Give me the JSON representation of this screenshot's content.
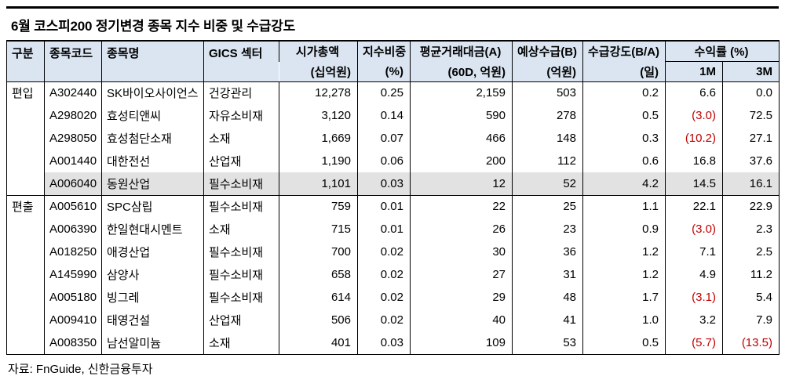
{
  "title": "6월 코스피200 정기변경 종목 지수 비중 및 수급강도",
  "source": "자료: FnGuide, 신한금융투자",
  "colors": {
    "header_bg": "#dbe5f1",
    "highlight_bg": "#e2e2e2",
    "negative": "#c00000"
  },
  "table": {
    "headers": {
      "group": "구분",
      "code": "종목코드",
      "name": "종목명",
      "sector": "GICS 섹터",
      "mcap": "시가총액",
      "mcap_unit": "(십억원)",
      "weight": "지수비중",
      "weight_unit": "(%)",
      "avg_value": "평균거래대금(A)",
      "avg_value_unit": "(60D, 억원)",
      "expected": "예상수급(B)",
      "expected_unit": "(억원)",
      "strength": "수급강도(B/A)",
      "strength_unit": "(일)",
      "return": "수익률 (%)",
      "return_1m": "1M",
      "return_3m": "3M"
    },
    "columns": [
      {
        "key": "group",
        "align": "left"
      },
      {
        "key": "code",
        "align": "left"
      },
      {
        "key": "name",
        "align": "left"
      },
      {
        "key": "sector",
        "align": "left"
      },
      {
        "key": "mcap",
        "align": "right"
      },
      {
        "key": "weight",
        "align": "right"
      },
      {
        "key": "avg",
        "align": "right"
      },
      {
        "key": "exp",
        "align": "right"
      },
      {
        "key": "strength",
        "align": "right"
      },
      {
        "key": "m1",
        "align": "right"
      },
      {
        "key": "m3",
        "align": "right"
      }
    ],
    "rows": [
      {
        "group": "편입",
        "code": "A302440",
        "name": "SK바이오사이언스",
        "sector": "건강관리",
        "mcap": "12,278",
        "weight": "0.25",
        "avg": "2,159",
        "exp": "503",
        "strength": "0.2",
        "m1": "6.6",
        "m3": "0.0",
        "highlight": false,
        "group_start": false
      },
      {
        "group": "",
        "code": "A298020",
        "name": "효성티앤씨",
        "sector": "자유소비재",
        "mcap": "3,120",
        "weight": "0.14",
        "avg": "590",
        "exp": "278",
        "strength": "0.5",
        "m1": "(3.0)",
        "m3": "72.5",
        "highlight": false,
        "group_start": false
      },
      {
        "group": "",
        "code": "A298050",
        "name": "효성첨단소재",
        "sector": "소재",
        "mcap": "1,669",
        "weight": "0.07",
        "avg": "466",
        "exp": "148",
        "strength": "0.3",
        "m1": "(10.2)",
        "m3": "27.1",
        "highlight": false,
        "group_start": false
      },
      {
        "group": "",
        "code": "A001440",
        "name": "대한전선",
        "sector": "산업재",
        "mcap": "1,190",
        "weight": "0.06",
        "avg": "200",
        "exp": "112",
        "strength": "0.6",
        "m1": "16.8",
        "m3": "37.6",
        "highlight": false,
        "group_start": false
      },
      {
        "group": "",
        "code": "A006040",
        "name": "동원산업",
        "sector": "필수소비재",
        "mcap": "1,101",
        "weight": "0.03",
        "avg": "12",
        "exp": "52",
        "strength": "4.2",
        "m1": "14.5",
        "m3": "16.1",
        "highlight": true,
        "group_start": false
      },
      {
        "group": "편출",
        "code": "A005610",
        "name": "SPC삼립",
        "sector": "필수소비재",
        "mcap": "759",
        "weight": "0.01",
        "avg": "22",
        "exp": "25",
        "strength": "1.1",
        "m1": "22.1",
        "m3": "22.9",
        "highlight": false,
        "group_start": true
      },
      {
        "group": "",
        "code": "A006390",
        "name": "한일현대시멘트",
        "sector": "소재",
        "mcap": "715",
        "weight": "0.01",
        "avg": "26",
        "exp": "23",
        "strength": "0.9",
        "m1": "(3.0)",
        "m3": "2.3",
        "highlight": false,
        "group_start": false
      },
      {
        "group": "",
        "code": "A018250",
        "name": "애경산업",
        "sector": "필수소비재",
        "mcap": "700",
        "weight": "0.02",
        "avg": "30",
        "exp": "36",
        "strength": "1.2",
        "m1": "7.1",
        "m3": "2.5",
        "highlight": false,
        "group_start": false
      },
      {
        "group": "",
        "code": "A145990",
        "name": "삼양사",
        "sector": "필수소비재",
        "mcap": "658",
        "weight": "0.02",
        "avg": "27",
        "exp": "31",
        "strength": "1.2",
        "m1": "4.9",
        "m3": "11.2",
        "highlight": false,
        "group_start": false
      },
      {
        "group": "",
        "code": "A005180",
        "name": "빙그레",
        "sector": "필수소비재",
        "mcap": "614",
        "weight": "0.02",
        "avg": "29",
        "exp": "48",
        "strength": "1.7",
        "m1": "(3.1)",
        "m3": "5.4",
        "highlight": false,
        "group_start": false
      },
      {
        "group": "",
        "code": "A009410",
        "name": "태영건설",
        "sector": "산업재",
        "mcap": "506",
        "weight": "0.02",
        "avg": "40",
        "exp": "41",
        "strength": "1.0",
        "m1": "3.2",
        "m3": "7.9",
        "highlight": false,
        "group_start": false
      },
      {
        "group": "",
        "code": "A008350",
        "name": "남선알미늄",
        "sector": "소재",
        "mcap": "401",
        "weight": "0.03",
        "avg": "109",
        "exp": "53",
        "strength": "0.5",
        "m1": "(5.7)",
        "m3": "(13.5)",
        "highlight": false,
        "group_start": false
      }
    ]
  }
}
